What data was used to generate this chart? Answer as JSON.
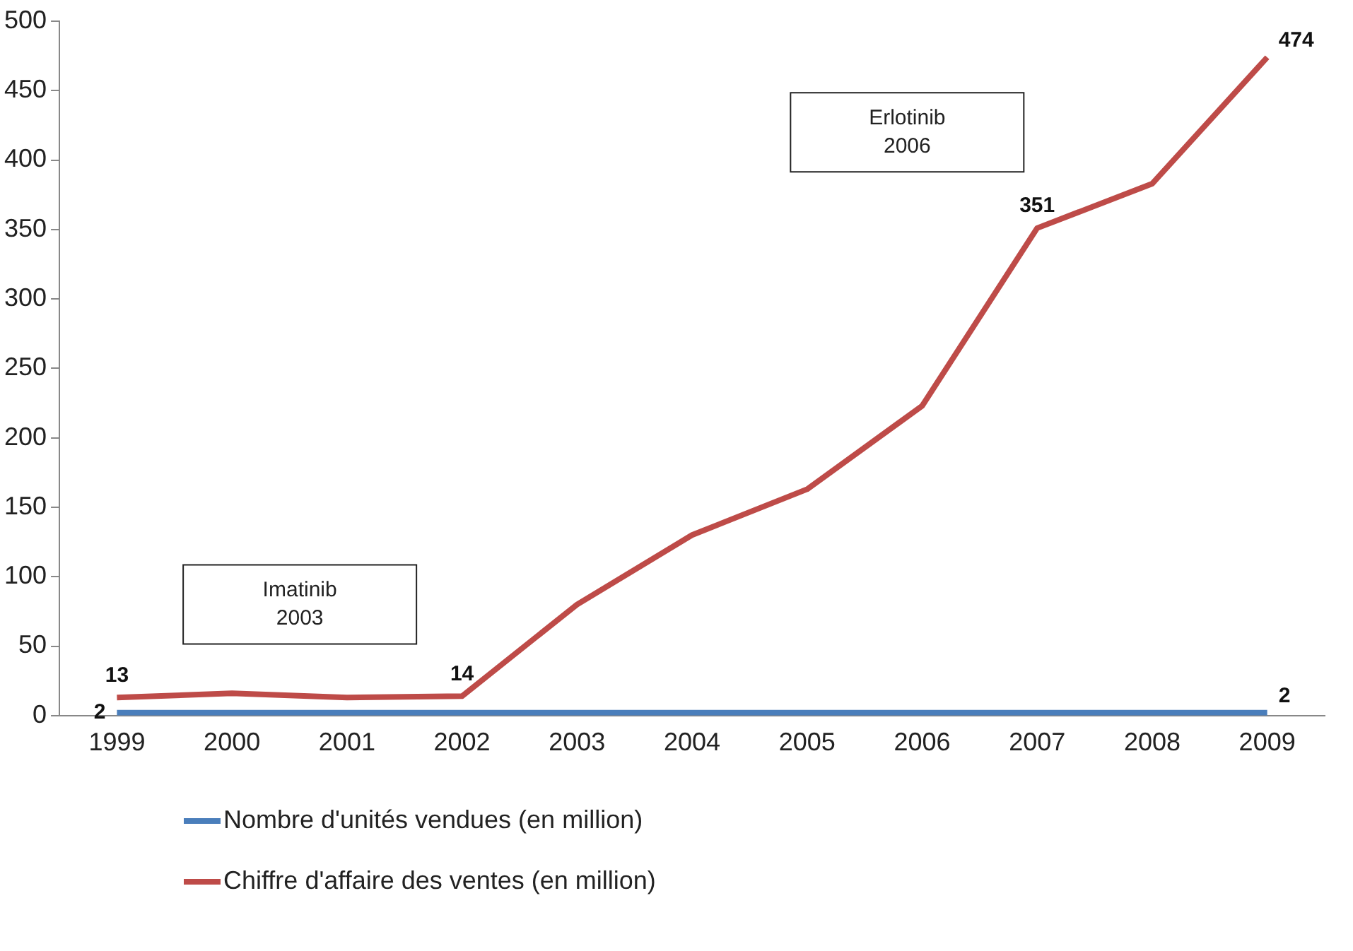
{
  "chart_data": {
    "type": "line",
    "categories": [
      "1999",
      "2000",
      "2001",
      "2002",
      "2003",
      "2004",
      "2005",
      "2006",
      "2007",
      "2008",
      "2009"
    ],
    "series": [
      {
        "name": "Nombre d'unités vendues (en million)",
        "color": "#4a7ebb",
        "values": [
          2,
          2,
          2,
          2,
          2,
          2,
          2,
          2,
          2,
          2,
          2
        ],
        "value_labels": [
          "2",
          null,
          null,
          null,
          null,
          null,
          null,
          null,
          null,
          null,
          "2"
        ]
      },
      {
        "name": "Chiffre d'affaire des ventes (en million)",
        "color": "#be4b48",
        "values": [
          13,
          16,
          13,
          14,
          80,
          130,
          163,
          223,
          351,
          383,
          474
        ],
        "value_labels": [
          "13",
          null,
          null,
          "14",
          null,
          null,
          null,
          null,
          "351",
          null,
          "474"
        ]
      }
    ],
    "ylim": [
      0,
      500
    ],
    "yticks": [
      0,
      50,
      100,
      150,
      200,
      250,
      300,
      350,
      400,
      450,
      500
    ],
    "grid": false,
    "legend": "bottom left",
    "marker": "none",
    "line_style": "solid",
    "annotations": [
      "Imatinib\n2003",
      "Erlotinib\n2006"
    ]
  }
}
